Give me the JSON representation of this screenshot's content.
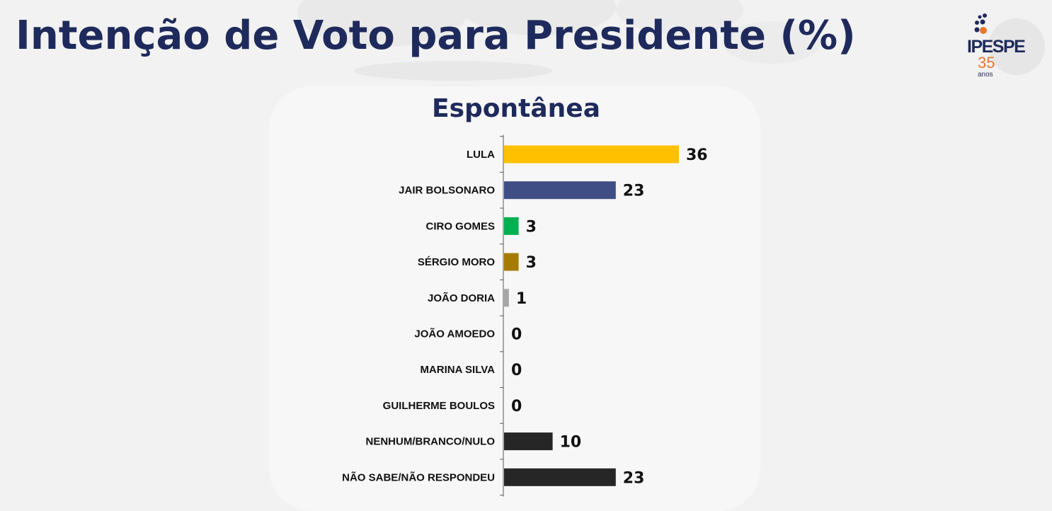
{
  "header": {
    "title": "Intenção de Voto para Presidente (%)"
  },
  "logo": {
    "brand": "IPESPE",
    "number": "35",
    "subtitle": "anos"
  },
  "chart_data": {
    "type": "bar",
    "orientation": "horizontal",
    "title": "Espontânea",
    "xlabel": "",
    "ylabel": "",
    "xlim": [
      0,
      36
    ],
    "grid": false,
    "legend": "none",
    "categories": [
      "LULA",
      "JAIR BOLSONARO",
      "CIRO GOMES",
      "SÉRGIO MORO",
      "JOÃO DORIA",
      "JOÃO AMOEDO",
      "MARINA SILVA",
      "GUILHERME BOULOS",
      "NENHUM/BRANCO/NULO",
      "NÃO SABE/NÃO RESPONDEU"
    ],
    "values": [
      36,
      23,
      3,
      3,
      1,
      0,
      0,
      0,
      10,
      23
    ],
    "colors": [
      "#ffc000",
      "#3f4e84",
      "#00b050",
      "#a67c00",
      "#a6a6a6",
      "#262626",
      "#262626",
      "#262626",
      "#262626",
      "#262626"
    ]
  }
}
